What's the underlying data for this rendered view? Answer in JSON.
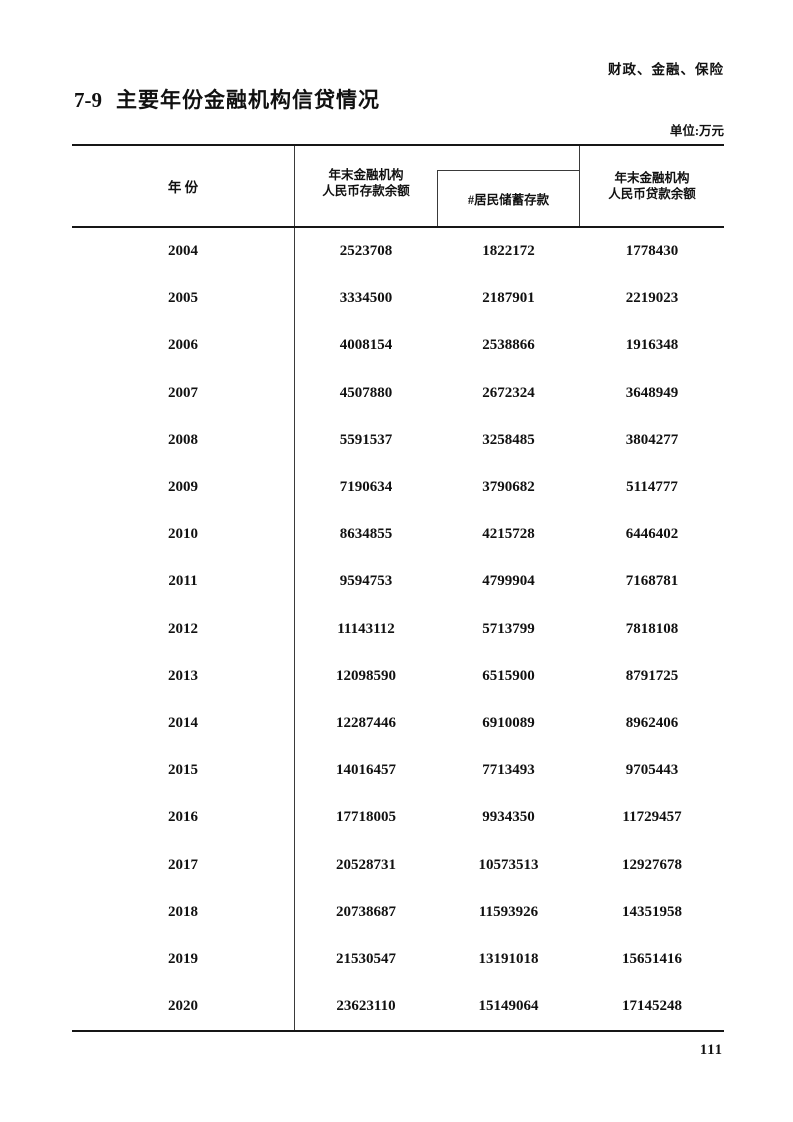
{
  "page": {
    "section_label": "财政、金融、保险",
    "title_number": "7-9",
    "title_text": "主要年份金融机构信贷情况",
    "unit_label": "单位:万元",
    "page_number": "111"
  },
  "colors": {
    "ink": "#111111",
    "paper": "#ffffff"
  },
  "table": {
    "headers": {
      "year": "年 份",
      "deposits_line1": "年末金融机构",
      "deposits_line2": "人民币存款余额",
      "savings": "#居民储蓄存款",
      "loans_line1": "年末金融机构",
      "loans_line2": "人民币贷款余额"
    },
    "rows": [
      {
        "year": "2004",
        "deposits": "2523708",
        "savings": "1822172",
        "loans": "1778430"
      },
      {
        "year": "2005",
        "deposits": "3334500",
        "savings": "2187901",
        "loans": "2219023"
      },
      {
        "year": "2006",
        "deposits": "4008154",
        "savings": "2538866",
        "loans": "1916348"
      },
      {
        "year": "2007",
        "deposits": "4507880",
        "savings": "2672324",
        "loans": "3648949"
      },
      {
        "year": "2008",
        "deposits": "5591537",
        "savings": "3258485",
        "loans": "3804277"
      },
      {
        "year": "2009",
        "deposits": "7190634",
        "savings": "3790682",
        "loans": "5114777"
      },
      {
        "year": "2010",
        "deposits": "8634855",
        "savings": "4215728",
        "loans": "6446402"
      },
      {
        "year": "2011",
        "deposits": "9594753",
        "savings": "4799904",
        "loans": "7168781"
      },
      {
        "year": "2012",
        "deposits": "11143112",
        "savings": "5713799",
        "loans": "7818108"
      },
      {
        "year": "2013",
        "deposits": "12098590",
        "savings": "6515900",
        "loans": "8791725"
      },
      {
        "year": "2014",
        "deposits": "12287446",
        "savings": "6910089",
        "loans": "8962406"
      },
      {
        "year": "2015",
        "deposits": "14016457",
        "savings": "7713493",
        "loans": "9705443"
      },
      {
        "year": "2016",
        "deposits": "17718005",
        "savings": "9934350",
        "loans": "11729457"
      },
      {
        "year": "2017",
        "deposits": "20528731",
        "savings": "10573513",
        "loans": "12927678"
      },
      {
        "year": "2018",
        "deposits": "20738687",
        "savings": "11593926",
        "loans": "14351958"
      },
      {
        "year": "2019",
        "deposits": "21530547",
        "savings": "13191018",
        "loans": "15651416"
      },
      {
        "year": "2020",
        "deposits": "23623110",
        "savings": "15149064",
        "loans": "17145248"
      }
    ]
  }
}
